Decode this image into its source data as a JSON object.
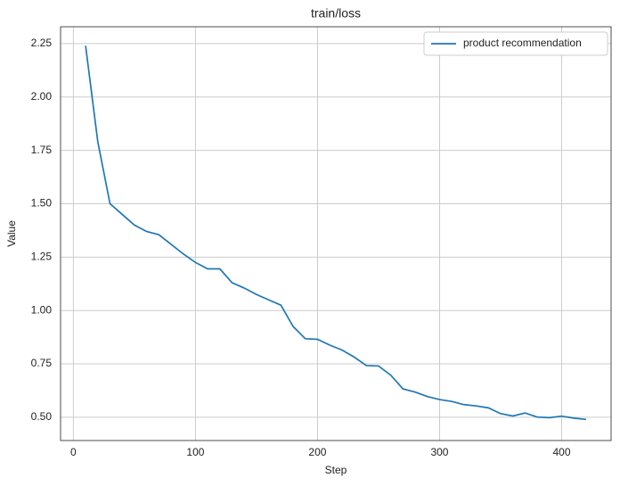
{
  "chart_data": {
    "type": "line",
    "title": "train/loss",
    "x_label": "Step",
    "y_label": "Value",
    "x": [
      10,
      20,
      30,
      40,
      50,
      60,
      70,
      80,
      90,
      100,
      110,
      120,
      130,
      140,
      150,
      160,
      170,
      180,
      190,
      200,
      210,
      220,
      230,
      240,
      250,
      260,
      270,
      280,
      290,
      300,
      310,
      320,
      330,
      340,
      350,
      360,
      370,
      380,
      390,
      400,
      410,
      420
    ],
    "series": [
      {
        "name": "product recommendation",
        "color": "#1f77b4",
        "values": [
          2.24,
          1.79,
          1.5,
          1.45,
          1.4,
          1.37,
          1.355,
          1.31,
          1.265,
          1.225,
          1.195,
          1.195,
          1.13,
          1.105,
          1.075,
          1.05,
          1.025,
          0.925,
          0.868,
          0.865,
          0.838,
          0.815,
          0.782,
          0.742,
          0.74,
          0.697,
          0.633,
          0.618,
          0.597,
          0.583,
          0.574,
          0.559,
          0.553,
          0.544,
          0.517,
          0.506,
          0.52,
          0.501,
          0.498,
          0.505,
          0.496,
          0.49
        ]
      }
    ],
    "xlim": [
      -10.5,
      440.5
    ],
    "ylim": [
      0.391,
      2.329
    ],
    "xticks": [
      0,
      100,
      200,
      300,
      400
    ],
    "yticks": [
      {
        "value": 0.5,
        "label": "0.50"
      },
      0.75,
      {
        "value": 1,
        "label": "1.00"
      },
      1.25,
      {
        "value": 1.5,
        "label": "1.50"
      },
      1.75,
      {
        "value": 2,
        "label": "2.00"
      },
      2.25
    ],
    "grid": true,
    "legend": "upper right"
  }
}
